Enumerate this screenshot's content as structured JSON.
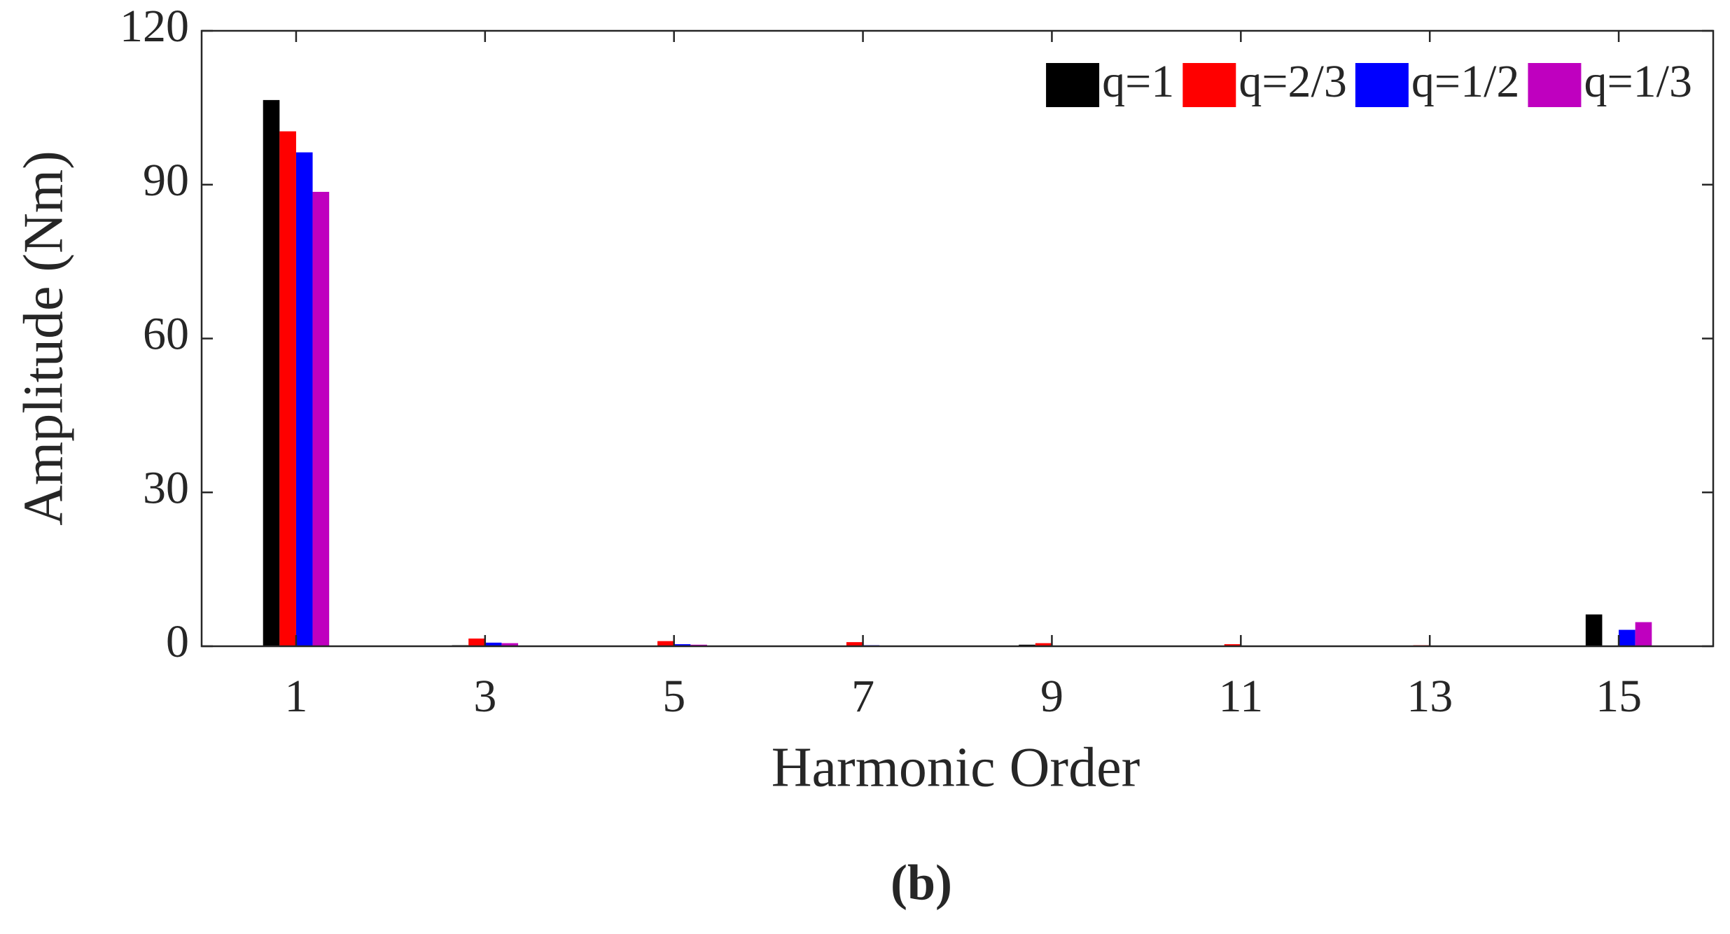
{
  "chart_data": {
    "type": "bar",
    "caption": "(b)",
    "xlabel": "Harmonic Order",
    "ylabel": "Amplitude (Nm)",
    "x": [
      1,
      2,
      3,
      4,
      5,
      6,
      7,
      8,
      9,
      10,
      11,
      12,
      13,
      14,
      15
    ],
    "series": [
      {
        "name": "q=1",
        "color": "#000000",
        "values": [
          106.5,
          0,
          0.2,
          0,
          0,
          0,
          0,
          0,
          0.3,
          0,
          0,
          0,
          0,
          0,
          6.2
        ]
      },
      {
        "name": "q=2/3",
        "color": "#ff0000",
        "values": [
          100.4,
          0,
          1.5,
          0,
          1.0,
          0,
          0.8,
          0,
          0.6,
          0,
          0.4,
          0,
          0.2,
          0,
          0.1
        ]
      },
      {
        "name": "q=1/2",
        "color": "#0000ff",
        "values": [
          96.3,
          0,
          0.7,
          0,
          0.4,
          0,
          0.2,
          0,
          0.1,
          0,
          0,
          0,
          0,
          0,
          3.2
        ]
      },
      {
        "name": "q=1/3",
        "color": "#bf00bf",
        "values": [
          88.6,
          0,
          0.6,
          0,
          0.3,
          0,
          0.1,
          0,
          0.1,
          0,
          0,
          0,
          0,
          0,
          4.7
        ]
      }
    ],
    "xlim": [
      0,
      16
    ],
    "xticks": [
      1,
      3,
      5,
      7,
      9,
      11,
      13,
      15
    ],
    "ylim": [
      0,
      120
    ],
    "yticks": [
      0,
      30,
      60,
      90,
      120
    ],
    "legend": "upper-right"
  }
}
